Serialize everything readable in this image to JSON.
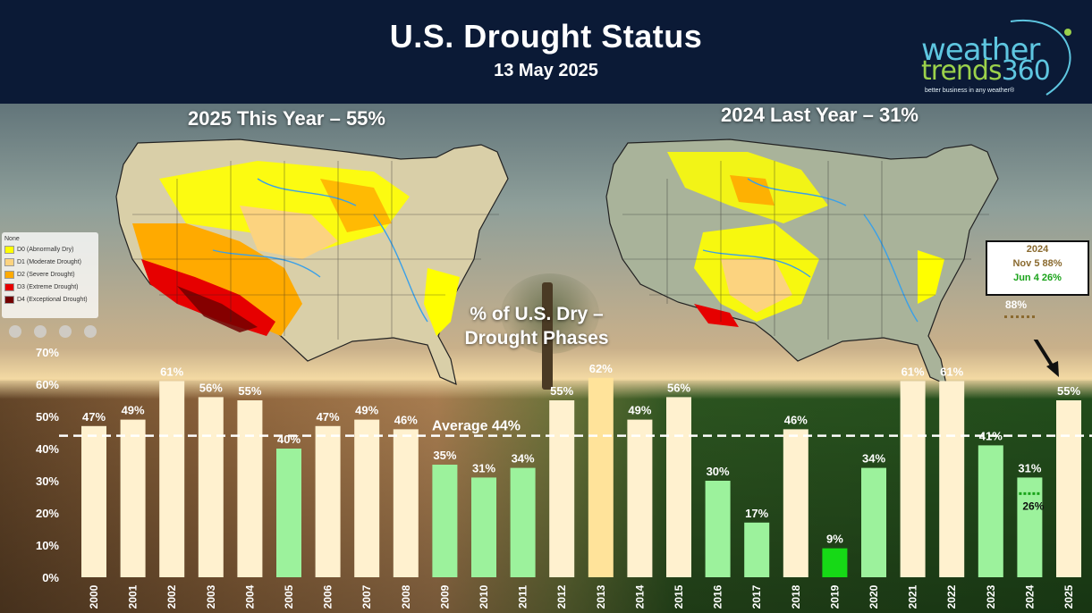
{
  "header": {
    "title": "U.S. Drought Status",
    "date": "13 May 2025"
  },
  "logo": {
    "line1": "weather",
    "line2a": "trends",
    "line2b": "360",
    "tagline": "better business in any weather®"
  },
  "maps": {
    "left_title": "2025 This Year – 55%",
    "right_title": "2024 Last Year – 31%"
  },
  "legend": {
    "items": [
      {
        "label": "None",
        "color": "#ffffff"
      },
      {
        "label": "D0 (Abnormally Dry)",
        "color": "#ffff00"
      },
      {
        "label": "D1 (Moderate Drought)",
        "color": "#fcd37f"
      },
      {
        "label": "D2 (Severe Drought)",
        "color": "#ffaa00"
      },
      {
        "label": "D3 (Extreme Drought)",
        "color": "#e60000"
      },
      {
        "label": "D4 (Exceptional Drought)",
        "color": "#730000"
      }
    ]
  },
  "callout": {
    "year": "2024",
    "line_nov": "Nov 5 88%",
    "line_jun": "Jun 4 26%",
    "peak_label": "88%",
    "inner_label": "26%",
    "colors": {
      "nov": "#8a6a2f",
      "jun": "#1aa31a",
      "year": "#8a6a2f"
    }
  },
  "chart_data": {
    "type": "bar",
    "title": "% of U.S. Dry – Drought Phases",
    "ylim": [
      0,
      70
    ],
    "yticks": [
      "0%",
      "10%",
      "20%",
      "30%",
      "40%",
      "50%",
      "60%",
      "70%"
    ],
    "categories": [
      "2000",
      "2001",
      "2002",
      "2003",
      "2004",
      "2005",
      "2006",
      "2007",
      "2008",
      "2009",
      "2010",
      "2011",
      "2012",
      "2013",
      "2014",
      "2015",
      "2016",
      "2017",
      "2018",
      "2019",
      "2020",
      "2021",
      "2022",
      "2023",
      "2024",
      "2025"
    ],
    "values": [
      47,
      49,
      61,
      56,
      55,
      40,
      47,
      49,
      46,
      35,
      31,
      34,
      55,
      62,
      49,
      56,
      30,
      17,
      46,
      9,
      34,
      61,
      61,
      41,
      31,
      55
    ],
    "labels": [
      "47%",
      "49%",
      "61%",
      "56%",
      "55%",
      "40%",
      "47%",
      "49%",
      "46%",
      "35%",
      "31%",
      "34%",
      "55%",
      "62%",
      "49%",
      "56%",
      "30%",
      "17%",
      "46%",
      "9%",
      "34%",
      "61%",
      "61%",
      "41%",
      "31%",
      "55%"
    ],
    "bar_colors": [
      "#fff1cf",
      "#fff1cf",
      "#fff1cf",
      "#fff1cf",
      "#fff1cf",
      "#9cf29c",
      "#fff1cf",
      "#fff1cf",
      "#fff1cf",
      "#9cf29c",
      "#9cf29c",
      "#9cf29c",
      "#fff1cf",
      "#ffe39a",
      "#fff1cf",
      "#fff1cf",
      "#9cf29c",
      "#9cf29c",
      "#fff1cf",
      "#16d916",
      "#9cf29c",
      "#fff1cf",
      "#fff1cf",
      "#9cf29c",
      "#9cf29c",
      "#fff1cf"
    ],
    "average": {
      "value": 44,
      "label": "Average 44%"
    },
    "grid": false,
    "legend": "none"
  }
}
